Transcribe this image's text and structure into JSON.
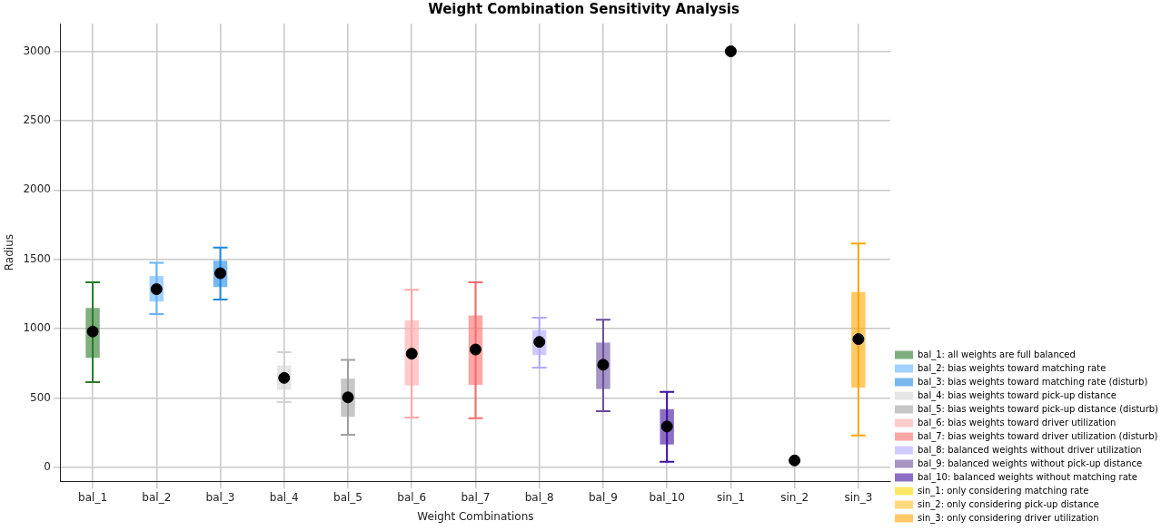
{
  "chart_data": {
    "type": "bar",
    "title": "Weight Combination Sensitivity Analysis",
    "xlabel": "Weight Combinations",
    "ylabel": "Radius",
    "categories": [
      "bal_1",
      "bal_2",
      "bal_3",
      "bal_4",
      "bal_5",
      "bal_6",
      "bal_7",
      "bal_8",
      "bal_9",
      "bal_10",
      "sin_1",
      "sin_2",
      "sin_3"
    ],
    "ylim": [
      -100,
      3200
    ],
    "yticks": [
      0,
      500,
      1000,
      1500,
      2000,
      2500,
      3000
    ],
    "grid": true,
    "legend": "bottom right",
    "series": [
      {
        "name": "bal_1: all weights are full balanced",
        "color": "#2a7a2a",
        "values": [
          360,
          null,
          null,
          null,
          null,
          null,
          null,
          null,
          null,
          null,
          null,
          null,
          null
        ],
        "base": [
          790,
          null,
          null,
          null,
          null,
          null,
          null,
          null,
          null,
          null,
          null,
          null,
          null
        ],
        "errors": [
          [
            615,
            1335
          ],
          null,
          null,
          null,
          null,
          null,
          null,
          null,
          null,
          null,
          null,
          null,
          null
        ]
      },
      {
        "name": "bal_2: bias weights toward matching rate",
        "color": "#66b3ff",
        "values": [
          null,
          185,
          null,
          null,
          null,
          null,
          null,
          null,
          null,
          null,
          null,
          null,
          null
        ],
        "base": [
          null,
          1195,
          null,
          null,
          null,
          null,
          null,
          null,
          null,
          null,
          null,
          null,
          null
        ],
        "errors": [
          null,
          [
            1105,
            1475
          ],
          null,
          null,
          null,
          null,
          null,
          null,
          null,
          null,
          null,
          null,
          null
        ]
      },
      {
        "name": "bal_3: bias weights toward matching rate (disturb)",
        "color": "#1e88e5",
        "values": [
          null,
          null,
          190,
          null,
          null,
          null,
          null,
          null,
          null,
          null,
          null,
          null,
          null
        ],
        "base": [
          null,
          null,
          1300,
          null,
          null,
          null,
          null,
          null,
          null,
          null,
          null,
          null,
          null
        ],
        "errors": [
          null,
          null,
          [
            1210,
            1585
          ],
          null,
          null,
          null,
          null,
          null,
          null,
          null,
          null,
          null,
          null
        ]
      },
      {
        "name": "bal_4: bias weights toward pick-up distance",
        "color": "#d3d3d3",
        "values": [
          null,
          null,
          null,
          175,
          null,
          null,
          null,
          null,
          null,
          null,
          null,
          null,
          null
        ],
        "base": [
          null,
          null,
          null,
          560,
          null,
          null,
          null,
          null,
          null,
          null,
          null,
          null,
          null
        ],
        "errors": [
          null,
          null,
          null,
          [
            470,
            830
          ],
          null,
          null,
          null,
          null,
          null,
          null,
          null,
          null,
          null
        ]
      },
      {
        "name": "bal_5: bias weights toward pick-up distance (disturb)",
        "color": "#a0a0a0",
        "values": [
          null,
          null,
          null,
          null,
          275,
          null,
          null,
          null,
          null,
          null,
          null,
          null,
          null
        ],
        "base": [
          null,
          null,
          null,
          null,
          365,
          null,
          null,
          null,
          null,
          null,
          null,
          null,
          null
        ],
        "errors": [
          null,
          null,
          null,
          null,
          [
            235,
            775
          ],
          null,
          null,
          null,
          null,
          null,
          null,
          null,
          null
        ]
      },
      {
        "name": "bal_6: bias weights toward driver utilization",
        "color": "#ffa8a8",
        "values": [
          null,
          null,
          null,
          null,
          null,
          470,
          null,
          null,
          null,
          null,
          null,
          null,
          null
        ],
        "base": [
          null,
          null,
          null,
          null,
          null,
          590,
          null,
          null,
          null,
          null,
          null,
          null,
          null
        ],
        "errors": [
          null,
          null,
          null,
          null,
          null,
          [
            360,
            1280
          ],
          null,
          null,
          null,
          null,
          null,
          null,
          null
        ]
      },
      {
        "name": "bal_7: bias weights toward driver utilization (disturb)",
        "color": "#ff6b6b",
        "values": [
          null,
          null,
          null,
          null,
          null,
          null,
          500,
          null,
          null,
          null,
          null,
          null,
          null
        ],
        "base": [
          null,
          null,
          null,
          null,
          null,
          null,
          595,
          null,
          null,
          null,
          null,
          null,
          null
        ],
        "errors": [
          null,
          null,
          null,
          null,
          null,
          null,
          [
            355,
            1335
          ],
          null,
          null,
          null,
          null,
          null,
          null
        ]
      },
      {
        "name": "bal_8: balanced weights without driver utilization",
        "color": "#b0a8ff",
        "values": [
          null,
          null,
          null,
          null,
          null,
          null,
          null,
          180,
          null,
          null,
          null,
          null,
          null
        ],
        "base": [
          null,
          null,
          null,
          null,
          null,
          null,
          null,
          810,
          null,
          null,
          null,
          null,
          null
        ],
        "errors": [
          null,
          null,
          null,
          null,
          null,
          null,
          null,
          [
            720,
            1080
          ],
          null,
          null,
          null,
          null,
          null
        ]
      },
      {
        "name": "bal_9: balanced weights without pick-up distance",
        "color": "#6a4c9c",
        "values": [
          null,
          null,
          null,
          null,
          null,
          null,
          null,
          null,
          335,
          null,
          null,
          null,
          null
        ],
        "base": [
          null,
          null,
          null,
          null,
          null,
          null,
          null,
          null,
          565,
          null,
          null,
          null,
          null
        ],
        "errors": [
          null,
          null,
          null,
          null,
          null,
          null,
          null,
          null,
          [
            405,
            1065
          ],
          null,
          null,
          null,
          null
        ]
      },
      {
        "name": "bal_10: balanced weights without matching rate",
        "color": "#3f0f9f",
        "values": [
          null,
          null,
          null,
          null,
          null,
          null,
          null,
          null,
          null,
          255,
          null,
          null,
          null
        ],
        "base": [
          null,
          null,
          null,
          null,
          null,
          null,
          null,
          null,
          null,
          165,
          null,
          null,
          null
        ],
        "errors": [
          null,
          null,
          null,
          null,
          null,
          null,
          null,
          null,
          null,
          [
            40,
            545
          ],
          null,
          null,
          null
        ]
      },
      {
        "name": "sin_1: only considering matching rate",
        "color": "#ffd700",
        "values": [
          null,
          null,
          null,
          null,
          null,
          null,
          null,
          null,
          null,
          null,
          null,
          null,
          null
        ]
      },
      {
        "name": "sin_2: only considering pick-up distance",
        "color": "#ffc125",
        "values": [
          null,
          null,
          null,
          null,
          null,
          null,
          null,
          null,
          null,
          null,
          null,
          null,
          null
        ]
      },
      {
        "name": "sin_3: only considering driver utilization",
        "color": "#ffa500",
        "values": [
          null,
          null,
          null,
          null,
          null,
          null,
          null,
          null,
          null,
          null,
          null,
          null,
          690
        ],
        "base": [
          null,
          null,
          null,
          null,
          null,
          null,
          null,
          null,
          null,
          null,
          null,
          null,
          575
        ],
        "errors": [
          null,
          null,
          null,
          null,
          null,
          null,
          null,
          null,
          null,
          null,
          null,
          null,
          [
            230,
            1615
          ]
        ]
      },
      {
        "type": "scatter",
        "color": "#000000",
        "marker": "circle",
        "x": [
          "bal_1",
          "bal_2",
          "bal_3",
          "bal_4",
          "bal_5",
          "bal_6",
          "bal_7",
          "bal_8",
          "bal_9",
          "bal_10",
          "sin_1",
          "sin_2",
          "sin_3"
        ],
        "values": [
          980,
          1285,
          1400,
          645,
          505,
          820,
          850,
          905,
          740,
          295,
          3000,
          50,
          925
        ]
      }
    ]
  }
}
